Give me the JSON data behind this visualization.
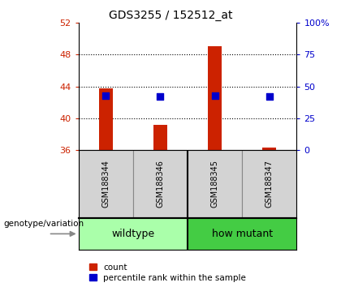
{
  "title": "GDS3255 / 152512_at",
  "samples": [
    "GSM188344",
    "GSM188346",
    "GSM188345",
    "GSM188347"
  ],
  "count_values": [
    43.8,
    39.2,
    49.1,
    36.3
  ],
  "percentile_values": [
    42.5,
    42.0,
    42.5,
    42.0
  ],
  "ylim_left": [
    36,
    52
  ],
  "yticks_left": [
    36,
    40,
    44,
    48,
    52
  ],
  "ylim_right": [
    0,
    100
  ],
  "yticks_right": [
    0,
    25,
    50,
    75,
    100
  ],
  "bar_color": "#cc2200",
  "dot_color": "#0000cc",
  "left_tick_color": "#cc2200",
  "right_tick_color": "#0000cc",
  "bar_width": 0.25,
  "dot_size": 35,
  "legend_count_label": "count",
  "legend_percentile_label": "percentile rank within the sample",
  "group_label_prefix": "genotype/variation",
  "wildtype_color": "#aaffaa",
  "howmutant_color": "#44cc44",
  "sample_bg_color": "#d3d3d3",
  "title_fontsize": 10,
  "tick_fontsize": 8,
  "sample_fontsize": 7,
  "group_fontsize": 9,
  "legend_fontsize": 7.5
}
